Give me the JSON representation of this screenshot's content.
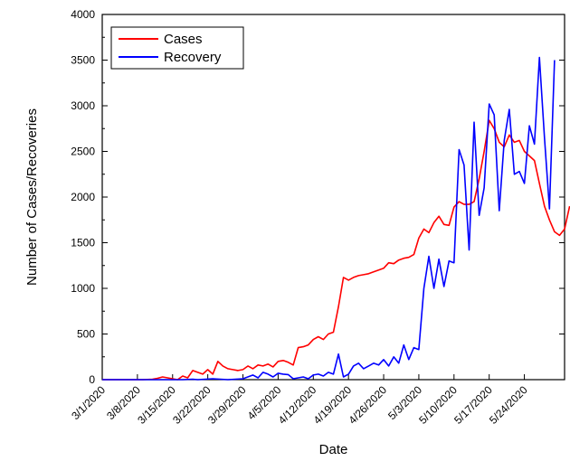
{
  "chart_data": {
    "type": "line",
    "xlabel": "Date",
    "ylabel": "Number of Cases/Recoveries",
    "x_start": "3/1/2020",
    "x_end": "6/1/2020",
    "ylim": [
      0,
      4000
    ],
    "y_ticks": [
      "0",
      "500",
      "1000",
      "1500",
      "2000",
      "2500",
      "3000",
      "3500",
      "4000"
    ],
    "x_ticks": [
      {
        "label": "3/1/2020",
        "day": 0
      },
      {
        "label": "3/8/2020",
        "day": 7
      },
      {
        "label": "3/15/2020",
        "day": 14
      },
      {
        "label": "3/22/2020",
        "day": 21
      },
      {
        "label": "3/29/2020",
        "day": 28
      },
      {
        "label": "4/5/2020",
        "day": 35
      },
      {
        "label": "4/12/2020",
        "day": 42
      },
      {
        "label": "4/19/2020",
        "day": 49
      },
      {
        "label": "4/26/2020",
        "day": 56
      },
      {
        "label": "5/3/2020",
        "day": 63
      },
      {
        "label": "5/10/2020",
        "day": 70
      },
      {
        "label": "5/17/2020",
        "day": 77
      },
      {
        "label": "5/24/2020",
        "day": 84
      }
    ],
    "grid": false,
    "legend_position": "top-left",
    "series": [
      {
        "name": "Cases",
        "color": "#ff0000",
        "points": [
          [
            0,
            0
          ],
          [
            5,
            0
          ],
          [
            8,
            0
          ],
          [
            10,
            5
          ],
          [
            11,
            15
          ],
          [
            12,
            30
          ],
          [
            13,
            20
          ],
          [
            14,
            10
          ],
          [
            15,
            0
          ],
          [
            16,
            40
          ],
          [
            17,
            20
          ],
          [
            18,
            100
          ],
          [
            19,
            80
          ],
          [
            20,
            60
          ],
          [
            21,
            110
          ],
          [
            22,
            60
          ],
          [
            23,
            200
          ],
          [
            24,
            150
          ],
          [
            25,
            120
          ],
          [
            26,
            110
          ],
          [
            27,
            100
          ],
          [
            28,
            110
          ],
          [
            29,
            150
          ],
          [
            30,
            120
          ],
          [
            31,
            160
          ],
          [
            32,
            150
          ],
          [
            33,
            170
          ],
          [
            34,
            140
          ],
          [
            35,
            200
          ],
          [
            36,
            210
          ],
          [
            37,
            190
          ],
          [
            38,
            160
          ],
          [
            39,
            350
          ],
          [
            40,
            360
          ],
          [
            41,
            380
          ],
          [
            42,
            440
          ],
          [
            43,
            470
          ],
          [
            44,
            440
          ],
          [
            45,
            500
          ],
          [
            46,
            520
          ],
          [
            47,
            800
          ],
          [
            48,
            1120
          ],
          [
            49,
            1090
          ],
          [
            50,
            1120
          ],
          [
            51,
            1140
          ],
          [
            52,
            1150
          ],
          [
            53,
            1160
          ],
          [
            54,
            1180
          ],
          [
            55,
            1200
          ],
          [
            56,
            1220
          ],
          [
            57,
            1280
          ],
          [
            58,
            1270
          ],
          [
            59,
            1310
          ],
          [
            60,
            1330
          ],
          [
            61,
            1340
          ],
          [
            62,
            1370
          ],
          [
            63,
            1550
          ],
          [
            64,
            1650
          ],
          [
            65,
            1610
          ],
          [
            66,
            1720
          ],
          [
            67,
            1790
          ],
          [
            68,
            1700
          ],
          [
            69,
            1690
          ],
          [
            70,
            1890
          ],
          [
            71,
            1950
          ],
          [
            72,
            1920
          ],
          [
            73,
            1920
          ],
          [
            74,
            1950
          ],
          [
            75,
            2200
          ],
          [
            76,
            2500
          ],
          [
            77,
            2840
          ],
          [
            78,
            2750
          ],
          [
            79,
            2600
          ],
          [
            80,
            2550
          ],
          [
            81,
            2680
          ],
          [
            82,
            2600
          ],
          [
            83,
            2620
          ],
          [
            84,
            2500
          ],
          [
            85,
            2450
          ],
          [
            86,
            2400
          ],
          [
            87,
            2150
          ],
          [
            88,
            1900
          ],
          [
            89,
            1750
          ],
          [
            90,
            1620
          ],
          [
            91,
            1580
          ],
          [
            92,
            1650
          ],
          [
            93,
            1900
          ]
        ]
      },
      {
        "name": "Recovery",
        "color": "#0000ff",
        "points": [
          [
            0,
            0
          ],
          [
            16,
            0
          ],
          [
            18,
            5
          ],
          [
            19,
            0
          ],
          [
            22,
            10
          ],
          [
            25,
            0
          ],
          [
            28,
            10
          ],
          [
            30,
            50
          ],
          [
            31,
            20
          ],
          [
            32,
            80
          ],
          [
            33,
            60
          ],
          [
            34,
            30
          ],
          [
            35,
            70
          ],
          [
            36,
            60
          ],
          [
            37,
            55
          ],
          [
            38,
            10
          ],
          [
            40,
            30
          ],
          [
            41,
            10
          ],
          [
            42,
            50
          ],
          [
            43,
            60
          ],
          [
            44,
            40
          ],
          [
            45,
            80
          ],
          [
            46,
            60
          ],
          [
            47,
            280
          ],
          [
            48,
            30
          ],
          [
            49,
            60
          ],
          [
            50,
            150
          ],
          [
            51,
            180
          ],
          [
            52,
            120
          ],
          [
            53,
            150
          ],
          [
            54,
            180
          ],
          [
            55,
            160
          ],
          [
            56,
            220
          ],
          [
            57,
            150
          ],
          [
            58,
            250
          ],
          [
            59,
            180
          ],
          [
            60,
            380
          ],
          [
            61,
            220
          ],
          [
            62,
            350
          ],
          [
            63,
            330
          ],
          [
            64,
            1000
          ],
          [
            65,
            1350
          ],
          [
            66,
            1000
          ],
          [
            67,
            1320
          ],
          [
            68,
            1020
          ],
          [
            69,
            1300
          ],
          [
            70,
            1280
          ],
          [
            71,
            2520
          ],
          [
            72,
            2350
          ],
          [
            73,
            1420
          ],
          [
            74,
            2820
          ],
          [
            75,
            1800
          ],
          [
            76,
            2100
          ],
          [
            77,
            3020
          ],
          [
            78,
            2900
          ],
          [
            79,
            1850
          ],
          [
            80,
            2620
          ],
          [
            81,
            2960
          ],
          [
            82,
            2250
          ],
          [
            83,
            2280
          ],
          [
            84,
            2150
          ],
          [
            85,
            2780
          ],
          [
            86,
            2580
          ],
          [
            87,
            3530
          ],
          [
            88,
            2650
          ],
          [
            89,
            1870
          ],
          [
            90,
            3500
          ]
        ]
      }
    ]
  }
}
